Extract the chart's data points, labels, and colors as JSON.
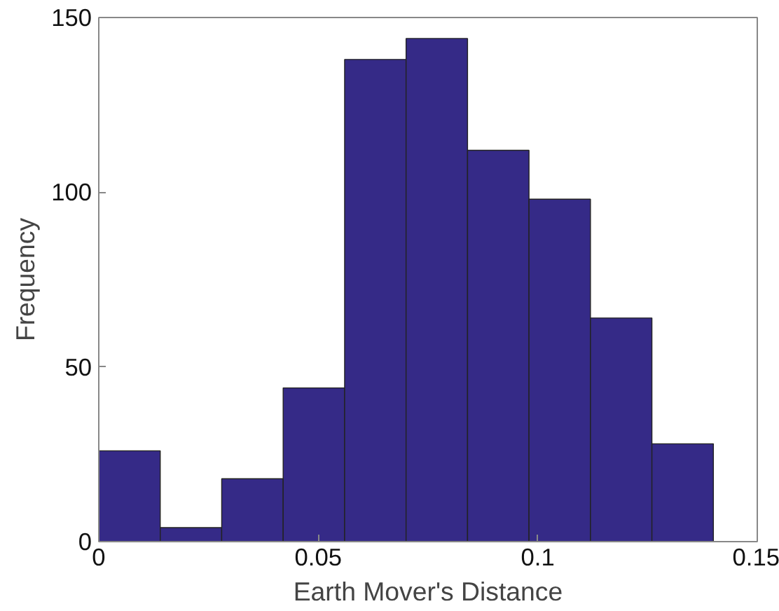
{
  "chart_data": {
    "type": "histogram",
    "xlabel": "Earth Mover's Distance",
    "ylabel": "Frequency",
    "bins": [
      0,
      0.014,
      0.028,
      0.042,
      0.056,
      0.07,
      0.084,
      0.098,
      0.112,
      0.126,
      0.14
    ],
    "values": [
      26,
      4,
      18,
      44,
      138,
      144,
      112,
      98,
      64,
      28
    ],
    "color": "#352a87",
    "xlim": [
      0,
      0.15
    ],
    "xticks": [
      0,
      0.05,
      0.1,
      0.15
    ],
    "ylim": [
      0,
      150
    ],
    "yticks": [
      0,
      50,
      100,
      150
    ],
    "grid": false
  }
}
